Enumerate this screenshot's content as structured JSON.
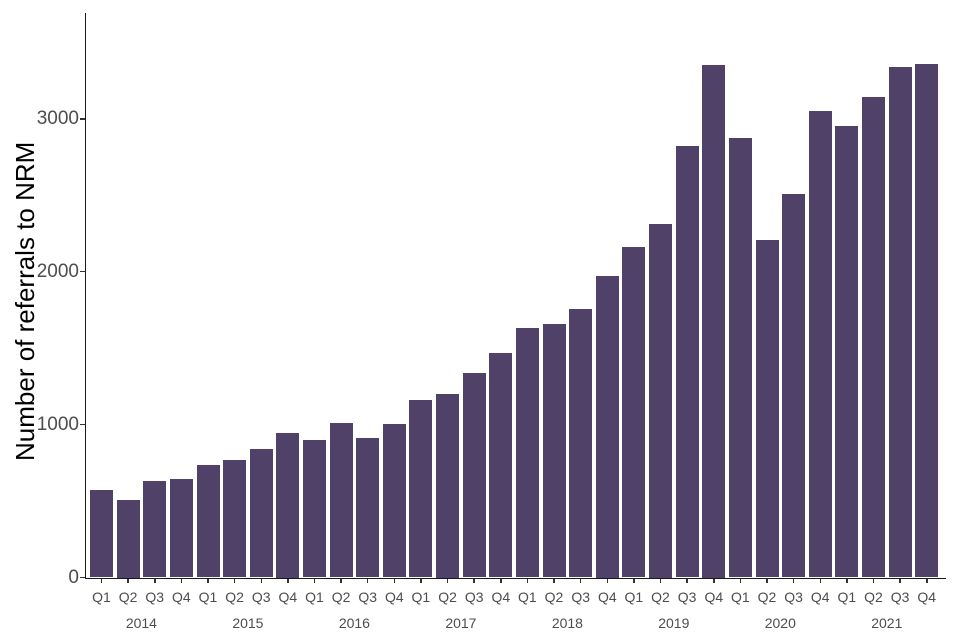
{
  "chart_data": {
    "type": "bar",
    "title": "",
    "xlabel": "",
    "ylabel": "Number of referrals to NRM",
    "legend_position": "none",
    "grid": false,
    "background_color": "#ffffff",
    "bar_color": "#4f4168",
    "axis_line_color": "#1a1a1a",
    "tick_label_color": "#4d4d4d",
    "ylim": [
      0,
      3695
    ],
    "y_tick_values": [
      0,
      1000,
      2000,
      3000
    ],
    "y_tick_labels": [
      "0",
      "1000",
      "2000",
      "3000"
    ],
    "quarter_tick_labels": [
      "Q1",
      "Q2",
      "Q3",
      "Q4",
      "Q1",
      "Q2",
      "Q3",
      "Q4",
      "Q1",
      "Q2",
      "Q3",
      "Q4",
      "Q1",
      "Q2",
      "Q3",
      "Q4",
      "Q1",
      "Q2",
      "Q3",
      "Q4",
      "Q1",
      "Q2",
      "Q3",
      "Q4",
      "Q1",
      "Q2",
      "Q3",
      "Q4",
      "Q1",
      "Q2",
      "Q3",
      "Q4"
    ],
    "year_labels": [
      "2014",
      "2015",
      "2016",
      "2017",
      "2018",
      "2019",
      "2020",
      "2021"
    ],
    "categories": [
      "2014 Q1",
      "2014 Q2",
      "2014 Q3",
      "2014 Q4",
      "2015 Q1",
      "2015 Q2",
      "2015 Q3",
      "2015 Q4",
      "2016 Q1",
      "2016 Q2",
      "2016 Q3",
      "2016 Q4",
      "2017 Q1",
      "2017 Q2",
      "2017 Q3",
      "2017 Q4",
      "2018 Q1",
      "2018 Q2",
      "2018 Q3",
      "2018 Q4",
      "2019 Q1",
      "2019 Q2",
      "2019 Q3",
      "2019 Q4",
      "2020 Q1",
      "2020 Q2",
      "2020 Q3",
      "2020 Q4",
      "2021 Q1",
      "2021 Q2",
      "2021 Q3",
      "2021 Q4"
    ],
    "values": [
      570,
      510,
      630,
      645,
      735,
      770,
      840,
      945,
      900,
      1010,
      910,
      1005,
      1160,
      1200,
      1335,
      1470,
      1630,
      1660,
      1755,
      1975,
      2160,
      2315,
      2820,
      3355,
      2875,
      2210,
      2510,
      3050,
      2950,
      3145,
      3340,
      3360
    ]
  }
}
